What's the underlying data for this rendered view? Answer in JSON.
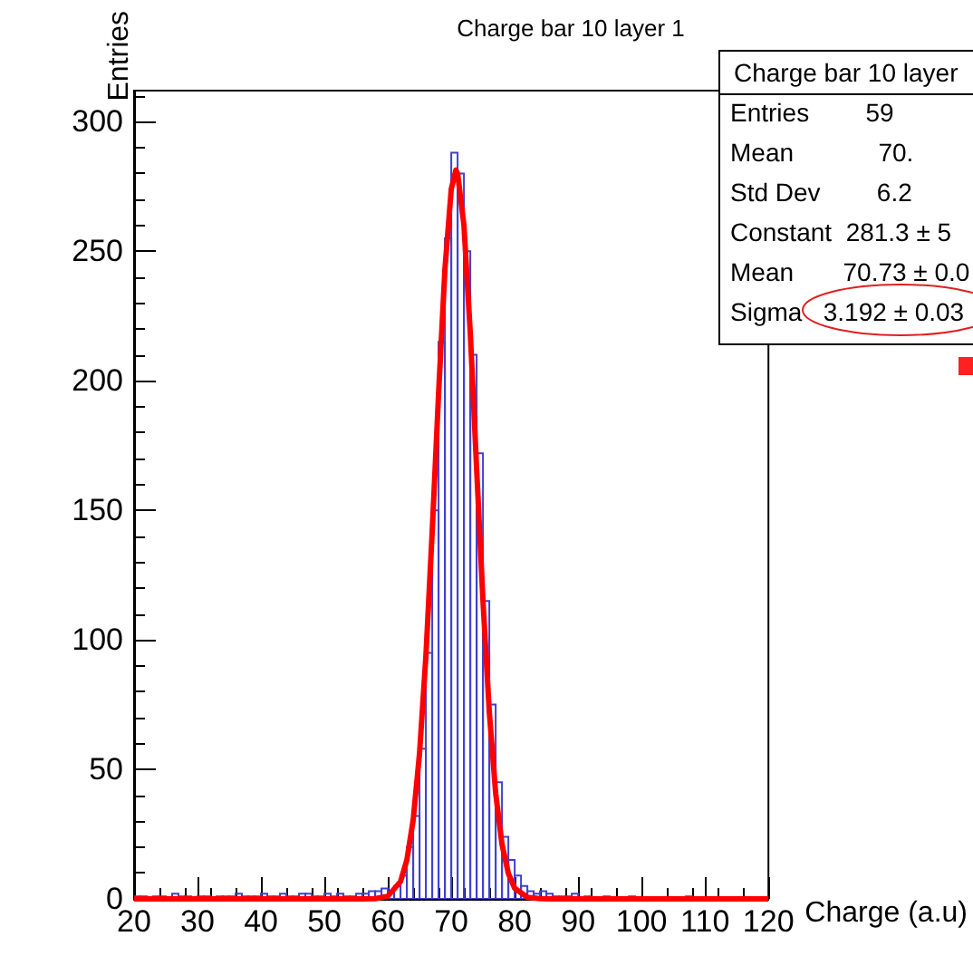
{
  "chart_data": {
    "type": "histogram",
    "title": "Charge bar 10 layer 1",
    "xlabel": "Charge (a.u)",
    "ylabel": "Entries",
    "bins": [
      20,
      21,
      22,
      23,
      24,
      25,
      26,
      27,
      28,
      29,
      30,
      31,
      32,
      33,
      34,
      35,
      36,
      37,
      38,
      39,
      40,
      41,
      42,
      43,
      44,
      45,
      46,
      47,
      48,
      49,
      50,
      51,
      52,
      53,
      54,
      55,
      56,
      57,
      58,
      59,
      60,
      61,
      62,
      63,
      64,
      65,
      66,
      67,
      68,
      69,
      70,
      71,
      72,
      73,
      74,
      75,
      76,
      77,
      78,
      79,
      80,
      81,
      82,
      83,
      84,
      85,
      86,
      87,
      88,
      89,
      90,
      91,
      92,
      93,
      94,
      95,
      96,
      97,
      98,
      99,
      100,
      101,
      102,
      103,
      104,
      105,
      106,
      107,
      108,
      109,
      110,
      111,
      112,
      113,
      114,
      115,
      116,
      117,
      118,
      119,
      120
    ],
    "values": [
      1,
      1,
      0,
      1,
      1,
      0,
      2,
      1,
      1,
      0,
      1,
      1,
      0,
      1,
      1,
      1,
      2,
      1,
      1,
      1,
      2,
      1,
      1,
      2,
      1,
      1,
      2,
      2,
      1,
      1,
      2,
      1,
      2,
      1,
      1,
      2,
      2,
      3,
      3,
      4,
      3,
      5,
      9,
      20,
      32,
      58,
      95,
      150,
      215,
      255,
      288,
      280,
      250,
      210,
      172,
      115,
      75,
      45,
      24,
      15,
      9,
      5,
      3,
      2,
      3,
      2,
      1,
      1,
      1,
      2,
      0,
      1,
      0,
      0,
      1,
      0,
      0,
      0,
      1,
      0,
      0,
      0,
      0,
      0,
      0,
      0,
      0,
      1,
      0,
      0,
      0,
      0,
      0,
      0,
      0,
      0,
      0,
      0,
      0,
      0
    ],
    "color": "#4040d0",
    "series": [
      {
        "type": "line",
        "color": "#ff0000",
        "x": [
          20,
          56,
          58,
          60,
          62,
          63,
          64,
          65,
          66,
          67,
          68,
          69,
          70,
          70.73,
          71,
          72,
          73,
          74,
          75,
          76,
          77,
          78,
          79,
          80,
          82,
          84,
          86,
          120
        ],
        "values": [
          0,
          0,
          0.1,
          1,
          6.7,
          15,
          30.5,
          56.2,
          93.6,
          142,
          195,
          243,
          274,
          281.3,
          280,
          260,
          218.5,
          166,
          115,
          72,
          40.8,
          21,
          9.8,
          4.1,
          0.6,
          0.1,
          0,
          0
        ]
      }
    ],
    "xlim": [
      20,
      120
    ],
    "xticks": [
      20,
      30,
      40,
      50,
      60,
      70,
      80,
      90,
      100,
      110,
      120
    ],
    "ylim": [
      0,
      312
    ],
    "yticks": [
      0,
      50,
      100,
      150,
      200,
      250,
      300
    ],
    "grid": false,
    "annotations": [
      "Charge bar 10 layer",
      "Entries        59",
      "Mean            70.",
      "Std Dev        6.2",
      "Constant  281.3 ± 5",
      "Mean       70.73 ± 0.0",
      "Sigma   3.192 ± 0.03"
    ]
  }
}
